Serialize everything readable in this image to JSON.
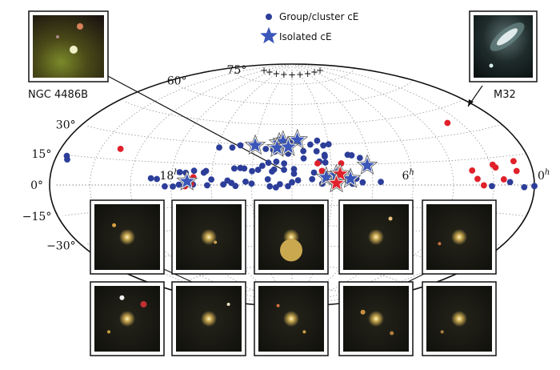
{
  "figure": {
    "legend": {
      "group_label": "Group/cluster cE",
      "isolated_label": "Isolated cE"
    },
    "insets": {
      "left_label": "NGC 4486B",
      "right_label": "M32"
    },
    "colors": {
      "group_marker": "#2c3e99",
      "isolated_star": "#3a56b8",
      "red_marker": "#e0202a",
      "grid": "#888888"
    }
  },
  "chart_data": {
    "type": "scatter",
    "projection": "aitoff",
    "grid": true,
    "legend_position": "top-center",
    "dec_ticks": [
      {
        "dec": 75,
        "label": "75°"
      },
      {
        "dec": 60,
        "label": "60°"
      },
      {
        "dec": 30,
        "label": "30°"
      },
      {
        "dec": 15,
        "label": "15°"
      },
      {
        "dec": 0,
        "label": "0°"
      },
      {
        "dec": -15,
        "label": "−15°"
      },
      {
        "dec": -30,
        "label": "−30°"
      }
    ],
    "ra_ticks": [
      {
        "ra": 18,
        "label": "18",
        "sup": "h"
      },
      {
        "ra": 6,
        "label": "6",
        "sup": "h"
      },
      {
        "ra": 0,
        "label": "0",
        "sup": "h"
      }
    ],
    "series": [
      {
        "name": "Group/cluster cE",
        "marker": "circle",
        "points": [
          [
            10.6,
            17.3
          ],
          [
            10.3,
            16.6
          ],
          [
            12.4,
            11.3
          ],
          [
            12.9,
            11.5
          ],
          [
            10.9,
            9.2
          ],
          [
            10.3,
            5.5
          ],
          [
            9.5,
            6.4
          ],
          [
            11.0,
            4.3
          ],
          [
            11.7,
            3.5
          ],
          [
            13.1,
            -1.0
          ],
          [
            12.8,
            -1.8
          ],
          [
            12.2,
            -0.9
          ],
          [
            12.6,
            0.6
          ],
          [
            8.8,
            4.6
          ],
          [
            9.6,
            2.9
          ],
          [
            8.5,
            1.9
          ],
          [
            9.0,
            0.9
          ],
          [
            7.6,
            2.2
          ],
          [
            14.3,
            2.4
          ],
          [
            14.8,
            -0.7
          ],
          [
            15.0,
            1.5
          ],
          [
            16.0,
            3.9
          ],
          [
            15.2,
            3.2
          ],
          [
            17.6,
            0.2
          ],
          [
            18.3,
            -0.9
          ],
          [
            17.3,
            -0.6
          ],
          [
            19.0,
            4.3
          ],
          [
            18.7,
            3.9
          ],
          [
            17.9,
            -1.0
          ],
          [
            16.2,
            -0.2
          ],
          [
            15.4,
            0.4
          ],
          [
            16.9,
            0.3
          ],
          [
            11.4,
            19.8
          ],
          [
            10.3,
            21.1
          ],
          [
            13.0,
            10.0
          ],
          [
            11.9,
            11.8
          ],
          [
            12.4,
            16.0
          ],
          [
            12.8,
            17.3
          ],
          [
            13.2,
            16.5
          ],
          [
            13.5,
            14.2
          ],
          [
            16.3,
            9.9
          ],
          [
            16.9,
            9.9
          ],
          [
            17.3,
            8.4
          ],
          [
            17.6,
            8.7
          ],
          [
            16.4,
            8.7
          ],
          [
            14.4,
            12.1
          ],
          [
            13.7,
            11.2
          ],
          [
            14.9,
            12.0
          ],
          [
            14.0,
            10.2
          ],
          [
            14.6,
            12.4
          ],
          [
            11.9,
            8.4
          ],
          [
            10.4,
            8.6
          ],
          [
            13.2,
            4.2
          ],
          [
            12.2,
            23.3
          ],
          [
            12.9,
            24.8
          ],
          [
            11.4,
            25.2
          ],
          [
            10.3,
            22.2
          ],
          [
            10.7,
            25.0
          ],
          [
            14.0,
            27.8
          ],
          [
            13.4,
            26.7
          ],
          [
            13.0,
            26.0
          ],
          [
            11.0,
            30.0
          ],
          [
            10.3,
            29.2
          ],
          [
            15.2,
            27.1
          ],
          [
            15.9,
            26.8
          ],
          [
            14.8,
            28.9
          ],
          [
            14.1,
            29.6
          ],
          [
            12.6,
            32.4
          ],
          [
            12.0,
            32.6
          ],
          [
            11.6,
            32.9
          ],
          [
            10.6,
            32.8
          ],
          [
            10.0,
            30.0
          ],
          [
            9.1,
            22.0
          ],
          [
            8.9,
            21.5
          ],
          [
            8.5,
            19.5
          ],
          [
            1.2,
            1.5
          ],
          [
            0.5,
            -1.1
          ],
          [
            0.0,
            -0.5
          ],
          [
            23.5,
            14.5
          ],
          [
            23.4,
            12.8
          ],
          [
            2.1,
            -0.6
          ],
          [
            14.0,
            1.0
          ],
          [
            12.0,
            2.0
          ],
          [
            10.5,
            1.0
          ]
        ]
      },
      {
        "name": "Isolated cE",
        "marker": "star",
        "points": [
          [
            14.0,
            29.1
          ],
          [
            12.7,
            31.1
          ],
          [
            12.5,
            32.4
          ],
          [
            11.7,
            33.5
          ],
          [
            12.8,
            27.6
          ],
          [
            12.2,
            28.3
          ],
          [
            8.2,
            14.0
          ],
          [
            10.3,
            5.6
          ],
          [
            9.1,
            4.5
          ],
          [
            9.8,
            7.2
          ],
          [
            17.2,
            2.5
          ]
        ]
      },
      {
        "name": "",
        "marker": "star-red",
        "points": [
          [
            9.6,
            8.0
          ],
          [
            9.8,
            1.3
          ]
        ]
      },
      {
        "name": "",
        "marker": "circle-red",
        "points": [
          [
            21.0,
            21.3
          ],
          [
            10.7,
            16.0
          ],
          [
            9.5,
            15.8
          ],
          [
            10.5,
            10.4
          ],
          [
            16.9,
            5.4
          ],
          [
            17.0,
            0.7
          ],
          [
            17.3,
            -0.9
          ],
          [
            1.5,
            3.0
          ],
          [
            0.8,
            7.1
          ],
          [
            1.8,
            9.5
          ],
          [
            1.9,
            11.1
          ],
          [
            0.8,
            12.1
          ],
          [
            2.8,
            3.5
          ],
          [
            2.5,
            -0.2
          ],
          [
            3.0,
            8.5
          ],
          [
            2.7,
            36.9
          ]
        ]
      }
    ]
  }
}
